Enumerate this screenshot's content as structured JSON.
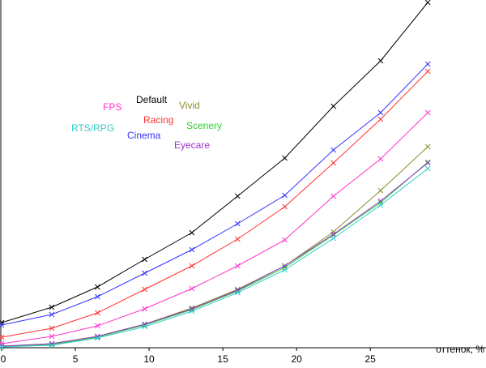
{
  "chart_data": {
    "type": "line",
    "x_label": "оттенок, %",
    "x": [
      0,
      3.4,
      6.5,
      9.7,
      12.9,
      16.0,
      19.2,
      22.5,
      25.7,
      28.9
    ],
    "xlim": [
      0,
      29
    ],
    "xticks": [
      0,
      5,
      10,
      15,
      20,
      25
    ],
    "ylim": [
      0,
      430
    ],
    "series": [
      {
        "name": "Default",
        "color": "#000000",
        "values": [
          31,
          50,
          75,
          109,
          142,
          187,
          234,
          298,
          354,
          426
        ]
      },
      {
        "name": "Cinema",
        "color": "#3333ff",
        "values": [
          28,
          41,
          63,
          92,
          121,
          153,
          188,
          244,
          290,
          350
        ]
      },
      {
        "name": "Racing",
        "color": "#ff3333",
        "values": [
          13,
          24,
          43,
          72,
          101,
          134,
          174,
          228,
          282,
          341
        ]
      },
      {
        "name": "FPS",
        "color": "#ff33cc",
        "values": [
          5,
          14,
          27,
          48,
          73,
          101,
          133,
          187,
          233,
          290
        ]
      },
      {
        "name": "Vivid",
        "color": "#8b8b2b",
        "values": [
          2,
          5,
          14,
          29,
          49,
          72,
          101,
          143,
          194,
          248
        ]
      },
      {
        "name": "Scenery",
        "color": "#33cc33",
        "values": [
          1,
          4,
          13,
          28,
          47,
          70,
          99,
          139,
          179,
          229
        ]
      },
      {
        "name": "Eyecare",
        "color": "#9933cc",
        "values": [
          2,
          5,
          14,
          29,
          48,
          71,
          101,
          140,
          181,
          228
        ]
      },
      {
        "name": "RTS/RPG",
        "color": "#33cccc",
        "values": [
          1,
          3,
          12,
          26,
          45,
          68,
          96,
          135,
          176,
          221
        ]
      }
    ]
  }
}
